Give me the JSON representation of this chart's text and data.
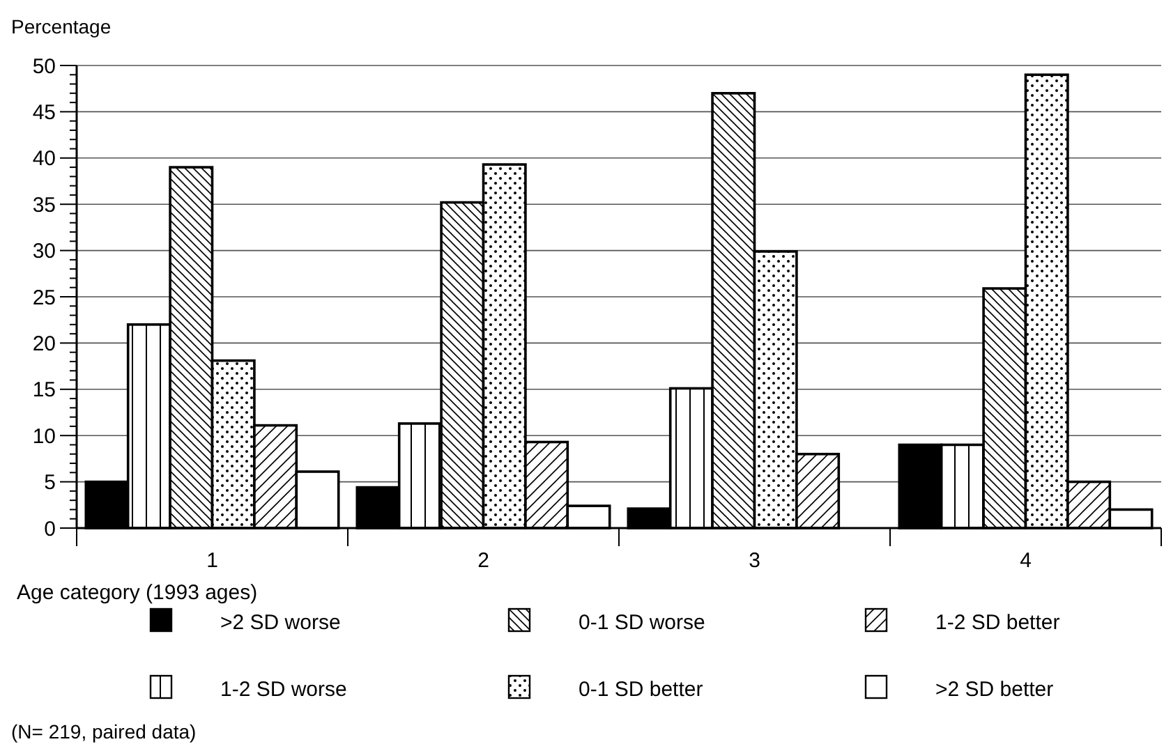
{
  "chart_data": {
    "type": "bar",
    "ylabel": "Percentage",
    "xlabel": "Age category (1993 ages)",
    "categories": [
      "1",
      "2",
      "3",
      "4"
    ],
    "series": [
      {
        "name": ">2 SD worse",
        "color": "#000000",
        "values": [
          5.0,
          4.4,
          2.1,
          9.0
        ]
      },
      {
        "name": "1-2 SD worse",
        "color": "#000000",
        "values": [
          22.0,
          11.3,
          15.1,
          9.0
        ]
      },
      {
        "name": "0-1 SD worse",
        "color": "#000000",
        "values": [
          39.0,
          35.2,
          47.0,
          25.9
        ]
      },
      {
        "name": "0-1 SD better",
        "color": "#000000",
        "values": [
          18.1,
          39.3,
          29.9,
          49.0
        ]
      },
      {
        "name": "1-2 SD better",
        "color": "#000000",
        "values": [
          11.1,
          9.3,
          8.0,
          5.0
        ]
      },
      {
        "name": ">2 SD better",
        "color": "#ffffff",
        "values": [
          6.1,
          2.4,
          0,
          2.0
        ]
      }
    ],
    "ylim": [
      0,
      50
    ],
    "yticks": [
      0,
      {
        "value": 1,
        "label": null
      },
      {
        "value": 2,
        "label": null
      },
      {
        "value": 3,
        "label": null
      },
      {
        "value": 4,
        "label": null
      },
      5,
      {
        "value": 6,
        "label": null
      },
      {
        "value": 7,
        "label": null
      },
      {
        "value": 8,
        "label": null
      },
      {
        "value": 9,
        "label": null
      },
      10,
      {
        "value": 11,
        "label": null
      },
      {
        "value": 12,
        "label": null
      },
      {
        "value": 13,
        "label": null
      },
      {
        "value": 14,
        "label": null
      },
      15,
      {
        "value": 16,
        "label": null
      },
      {
        "value": 17,
        "label": null
      },
      {
        "value": 18,
        "label": null
      },
      {
        "value": 19,
        "label": null
      },
      20,
      {
        "value": 21,
        "label": null
      },
      {
        "value": 22,
        "label": null
      },
      {
        "value": 23,
        "label": null
      },
      {
        "value": 24,
        "label": null
      },
      25,
      {
        "value": 26,
        "label": null
      },
      {
        "value": 27,
        "label": null
      },
      {
        "value": 28,
        "label": null
      },
      {
        "value": 29,
        "label": null
      },
      30,
      {
        "value": 31,
        "label": null
      },
      {
        "value": 32,
        "label": null
      },
      {
        "value": 33,
        "label": null
      },
      {
        "value": 34,
        "label": null
      },
      35,
      {
        "value": 36,
        "label": null
      },
      {
        "value": 37,
        "label": null
      },
      {
        "value": 38,
        "label": null
      },
      {
        "value": 39,
        "label": null
      },
      40,
      {
        "value": 41,
        "label": null
      },
      {
        "value": 42,
        "label": null
      },
      {
        "value": 43,
        "label": null
      },
      {
        "value": 44,
        "label": null
      },
      45,
      {
        "value": 46,
        "label": null
      },
      {
        "value": 47,
        "label": null
      },
      {
        "value": 48,
        "label": null
      },
      {
        "value": 49,
        "label": null
      },
      50
    ],
    "grid": "y",
    "legend": "bottom",
    "annotations": [
      "(N= 219, paired data)"
    ]
  }
}
